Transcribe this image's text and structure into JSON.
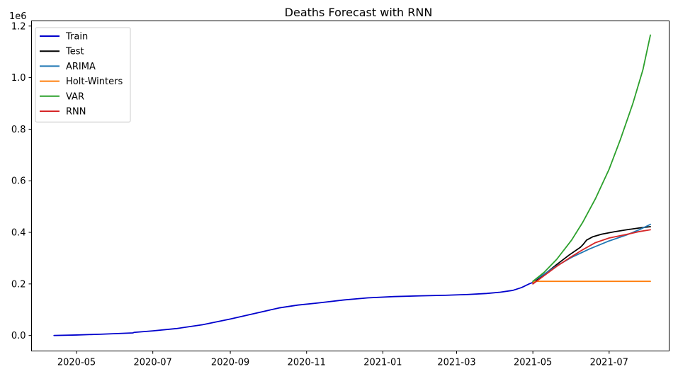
{
  "chart_data": {
    "type": "line",
    "title": "Deaths Forecast with RNN",
    "xlabel": "",
    "ylabel": "",
    "y_offset_label": "1e6",
    "x_range": [
      "2020-03-26",
      "2021-08-18"
    ],
    "ylim": [
      -0.06,
      1.22
    ],
    "grid": false,
    "legend_position": "top-left",
    "x_ticks": [
      {
        "date": "2020-05-01",
        "label": "2020-05"
      },
      {
        "date": "2020-07-01",
        "label": "2020-07"
      },
      {
        "date": "2020-09-01",
        "label": "2020-09"
      },
      {
        "date": "2020-11-01",
        "label": "2020-11"
      },
      {
        "date": "2021-01-01",
        "label": "2021-01"
      },
      {
        "date": "2021-03-01",
        "label": "2021-03"
      },
      {
        "date": "2021-05-01",
        "label": "2021-05"
      },
      {
        "date": "2021-07-01",
        "label": "2021-07"
      }
    ],
    "y_ticks": [
      {
        "value": 0.0,
        "label": "0.0"
      },
      {
        "value": 0.2,
        "label": "0.2"
      },
      {
        "value": 0.4,
        "label": "0.4"
      },
      {
        "value": 0.6,
        "label": "0.6"
      },
      {
        "value": 0.8,
        "label": "0.8"
      },
      {
        "value": 1.0,
        "label": "1.0"
      },
      {
        "value": 1.2,
        "label": "1.2"
      }
    ],
    "series": [
      {
        "name": "Train",
        "color": "#0000cc",
        "points": [
          [
            "2020-04-13",
            0.0
          ],
          [
            "2020-05-01",
            0.002
          ],
          [
            "2020-05-20",
            0.005
          ],
          [
            "2020-06-15",
            0.01
          ],
          [
            "2020-06-16",
            0.012
          ],
          [
            "2020-07-01",
            0.018
          ],
          [
            "2020-07-20",
            0.027
          ],
          [
            "2020-08-10",
            0.042
          ],
          [
            "2020-09-01",
            0.064
          ],
          [
            "2020-09-20",
            0.085
          ],
          [
            "2020-10-10",
            0.107
          ],
          [
            "2020-10-25",
            0.118
          ],
          [
            "2020-11-10",
            0.126
          ],
          [
            "2020-12-01",
            0.138
          ],
          [
            "2020-12-20",
            0.146
          ],
          [
            "2021-01-10",
            0.151
          ],
          [
            "2021-02-01",
            0.154
          ],
          [
            "2021-02-20",
            0.156
          ],
          [
            "2021-03-10",
            0.159
          ],
          [
            "2021-03-25",
            0.163
          ],
          [
            "2021-04-05",
            0.168
          ],
          [
            "2021-04-15",
            0.175
          ],
          [
            "2021-04-22",
            0.186
          ],
          [
            "2021-04-28",
            0.2
          ],
          [
            "2021-05-01",
            0.206
          ]
        ]
      },
      {
        "name": "Test",
        "color": "#000000",
        "points": [
          [
            "2021-05-01",
            0.206
          ],
          [
            "2021-05-10",
            0.236
          ],
          [
            "2021-05-20",
            0.275
          ],
          [
            "2021-05-30",
            0.312
          ],
          [
            "2021-06-08",
            0.342
          ],
          [
            "2021-06-10",
            0.352
          ],
          [
            "2021-06-13",
            0.37
          ],
          [
            "2021-06-18",
            0.383
          ],
          [
            "2021-06-25",
            0.393
          ],
          [
            "2021-07-05",
            0.402
          ],
          [
            "2021-07-15",
            0.41
          ],
          [
            "2021-07-25",
            0.417
          ],
          [
            "2021-08-03",
            0.422
          ]
        ]
      },
      {
        "name": "ARIMA",
        "color": "#1f77b4",
        "points": [
          [
            "2021-05-01",
            0.21
          ],
          [
            "2021-05-10",
            0.238
          ],
          [
            "2021-05-20",
            0.27
          ],
          [
            "2021-06-01",
            0.303
          ],
          [
            "2021-06-15",
            0.335
          ],
          [
            "2021-06-30",
            0.365
          ],
          [
            "2021-07-15",
            0.39
          ],
          [
            "2021-07-25",
            0.41
          ],
          [
            "2021-08-03",
            0.431
          ]
        ]
      },
      {
        "name": "Holt-Winters",
        "color": "#ff7f0e",
        "points": [
          [
            "2021-05-01",
            0.207
          ],
          [
            "2021-05-03",
            0.21
          ],
          [
            "2021-08-03",
            0.21
          ]
        ]
      },
      {
        "name": "VAR",
        "color": "#2ca02c",
        "points": [
          [
            "2021-05-01",
            0.21
          ],
          [
            "2021-05-10",
            0.245
          ],
          [
            "2021-05-20",
            0.295
          ],
          [
            "2021-06-01",
            0.37
          ],
          [
            "2021-06-10",
            0.44
          ],
          [
            "2021-06-20",
            0.53
          ],
          [
            "2021-07-01",
            0.645
          ],
          [
            "2021-07-10",
            0.76
          ],
          [
            "2021-07-20",
            0.9
          ],
          [
            "2021-07-28",
            1.03
          ],
          [
            "2021-08-03",
            1.165
          ]
        ]
      },
      {
        "name": "RNN",
        "color": "#d62728",
        "points": [
          [
            "2021-05-01",
            0.2
          ],
          [
            "2021-05-10",
            0.232
          ],
          [
            "2021-05-20",
            0.268
          ],
          [
            "2021-05-30",
            0.3
          ],
          [
            "2021-06-10",
            0.333
          ],
          [
            "2021-06-20",
            0.36
          ],
          [
            "2021-07-01",
            0.378
          ],
          [
            "2021-07-15",
            0.392
          ],
          [
            "2021-07-25",
            0.403
          ],
          [
            "2021-08-03",
            0.41
          ]
        ]
      }
    ]
  }
}
